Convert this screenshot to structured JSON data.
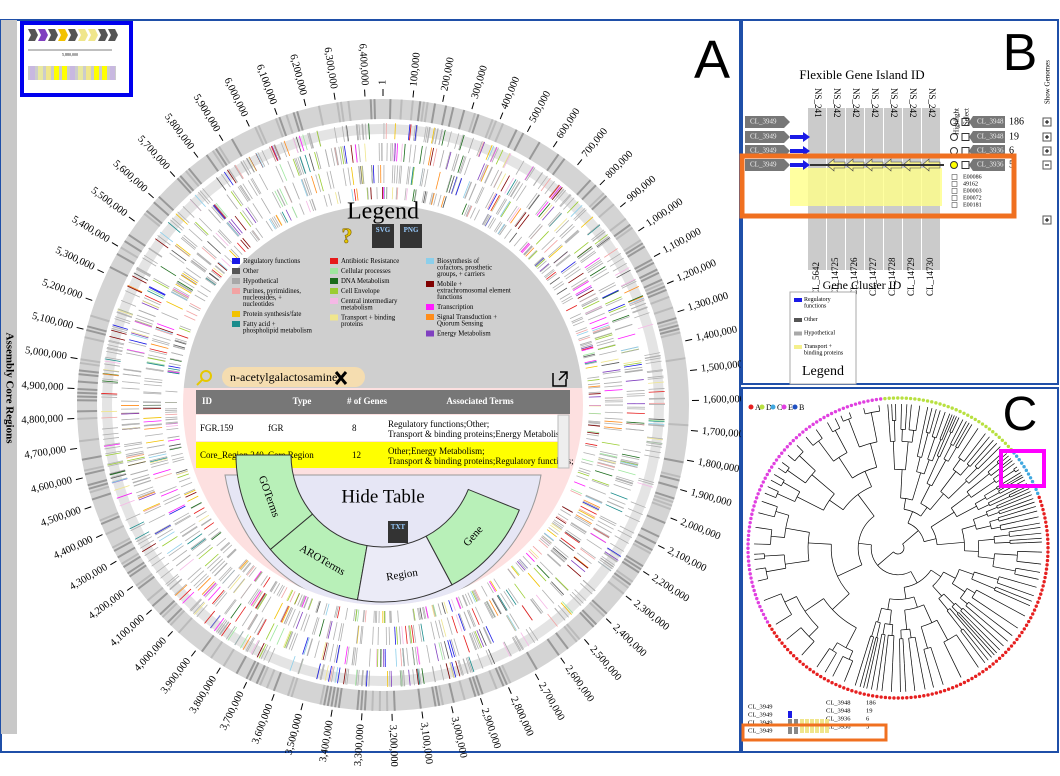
{
  "panel_labels": [
    "A",
    "B",
    "C"
  ],
  "panel_a": {
    "sidebar_title": "Assembly Core Regions",
    "minimap_label": "5,880,000",
    "position_ticks": [
      "1",
      "100,000",
      "200,000",
      "300,000",
      "400,000",
      "500,000",
      "600,000",
      "700,000",
      "800,000",
      "900,000",
      "1,000,000",
      "1,100,000",
      "1,200,000",
      "1,300,000",
      "1,400,000",
      "1,500,000",
      "1,600,000",
      "1,700,000",
      "1,800,000",
      "1,900,000",
      "2,000,000",
      "2,100,000",
      "2,200,000",
      "2,300,000",
      "2,400,000",
      "2,500,000",
      "2,600,000",
      "2,700,000",
      "2,800,000",
      "2,900,000",
      "3,000,000",
      "3,100,000",
      "3,200,000",
      "3,300,000",
      "3,400,000",
      "3,500,000",
      "3,600,000",
      "3,700,000",
      "3,800,000",
      "3,900,000",
      "4,000,000",
      "4,100,000",
      "4,200,000",
      "4,300,000",
      "4,400,000",
      "4,500,000",
      "4,600,000",
      "4,700,000",
      "4,800,000",
      "4,900,000",
      "5,000,000",
      "5,100,000",
      "5,200,000",
      "5,300,000",
      "5,400,000",
      "5,500,000",
      "5,600,000",
      "5,700,000",
      "5,800,000",
      "5,900,000",
      "6,000,000",
      "6,100,000",
      "6,200,000",
      "6,300,000",
      "6,400,000"
    ],
    "legend": {
      "title": "Legend",
      "help": "?",
      "buttons": [
        "SVG",
        "PNG"
      ],
      "items": [
        {
          "name": "Regulatory functions",
          "color": "#1a1ae6"
        },
        {
          "name": "Other",
          "color": "#555555"
        },
        {
          "name": "Hypothetical",
          "color": "#a8a8a8"
        },
        {
          "name": "Purines, pyrimidines, nucleosides, + nucleotides",
          "color": "#f2a3a3"
        },
        {
          "name": "Protein synthesis/fate",
          "color": "#f2c200"
        },
        {
          "name": "Fatty acid + phospholipid metabolism",
          "color": "#1a8c8c"
        },
        {
          "name": "Antibiotic Resistance",
          "color": "#e61a1a"
        },
        {
          "name": "Cellular processes",
          "color": "#9ee69e"
        },
        {
          "name": "DNA Metabolism",
          "color": "#1a6b1a"
        },
        {
          "name": "Cell Envelope",
          "color": "#9acd32"
        },
        {
          "name": "Central intermediary metabolism",
          "color": "#f5b8e6"
        },
        {
          "name": "Transport + binding proteins",
          "color": "#f0e68c"
        },
        {
          "name": "Biosynthesis of cofactors, prosthetic groups, + carriers",
          "color": "#8ccfeb"
        },
        {
          "name": "Mobile + extrachromosomal element functions",
          "color": "#800000"
        },
        {
          "name": "Transcription",
          "color": "#ff1aff"
        },
        {
          "name": "Signal Transduction + Quorum Sensing",
          "color": "#ff8c1a"
        },
        {
          "name": "Energy Metabolism",
          "color": "#8040c0"
        }
      ]
    },
    "search": "n-acetylgalactosamine",
    "table": {
      "columns": [
        "ID",
        "Type",
        "# of Genes",
        "Associated Terms"
      ],
      "rows": [
        [
          "FGR.159",
          "fGR",
          "8",
          "Regulatory functions;Other;Transport & binding proteins;Energy Metabolism;"
        ],
        [
          "Core_Region.240",
          "Core Region",
          "12",
          "Other;Energy Metabolism;Transport & binding proteins;Regulatory functions;"
        ]
      ]
    },
    "hide_table": "Hide Table",
    "tabs": [
      "GOTerms",
      "AROTerms",
      "Region",
      "Gene"
    ],
    "export": "TXT"
  },
  "panel_b": {
    "title": "Flexible Gene Island ID",
    "island_ids": [
      "NS_241",
      "NS_242",
      "NS_242",
      "NS_242",
      "NS_242",
      "NS_242",
      "NS_242"
    ],
    "cluster_ids": [
      "CL_5642",
      "CL_14725",
      "CL_14726",
      "CL_14727",
      "CL_14728",
      "CL_14729",
      "CL_14730"
    ],
    "cluster_axis": "Gene Cluster ID",
    "row_labels": [
      "CL_3949",
      "CL_3949",
      "CL_3949",
      "CL_3949"
    ],
    "right_rows": [
      {
        "label": "CL_3948",
        "count": 186
      },
      {
        "label": "CL_3948",
        "count": 19
      },
      {
        "label": "CL_3936",
        "count": 6
      },
      {
        "label": "CL_3936",
        "count": 5
      }
    ],
    "headers": [
      "Highlight",
      "Select",
      "Show Genomes"
    ],
    "genomes": [
      "E00086",
      "49162",
      "E00003",
      "E00072",
      "E00181"
    ],
    "legend": {
      "title": "Legend",
      "items": [
        {
          "name": "Regulatory functions",
          "color": "#1a1ae6"
        },
        {
          "name": "Other",
          "color": "#555555"
        },
        {
          "name": "Hypothetical",
          "color": "#a8a8a8"
        },
        {
          "name": "Transport + binding proteins",
          "color": "#f5f08c"
        }
      ]
    }
  },
  "panel_c": {
    "groups": [
      {
        "name": "A",
        "color": "#e62020"
      },
      {
        "name": "D",
        "color": "#b8e040"
      },
      {
        "name": "C",
        "color": "#40a8e0"
      },
      {
        "name": "E",
        "color": "#e040e0"
      },
      {
        "name": "B",
        "color": "#2050c0"
      }
    ],
    "mini_left": [
      "CL_3949",
      "CL_3949",
      "CL_3949",
      "CL_3949"
    ],
    "mini_right": [
      {
        "label": "CL_3948",
        "count": 186
      },
      {
        "label": "CL_3948",
        "count": 19
      },
      {
        "label": "CL_3936",
        "count": 6
      },
      {
        "label": "CL_3936",
        "count": 5
      }
    ]
  }
}
